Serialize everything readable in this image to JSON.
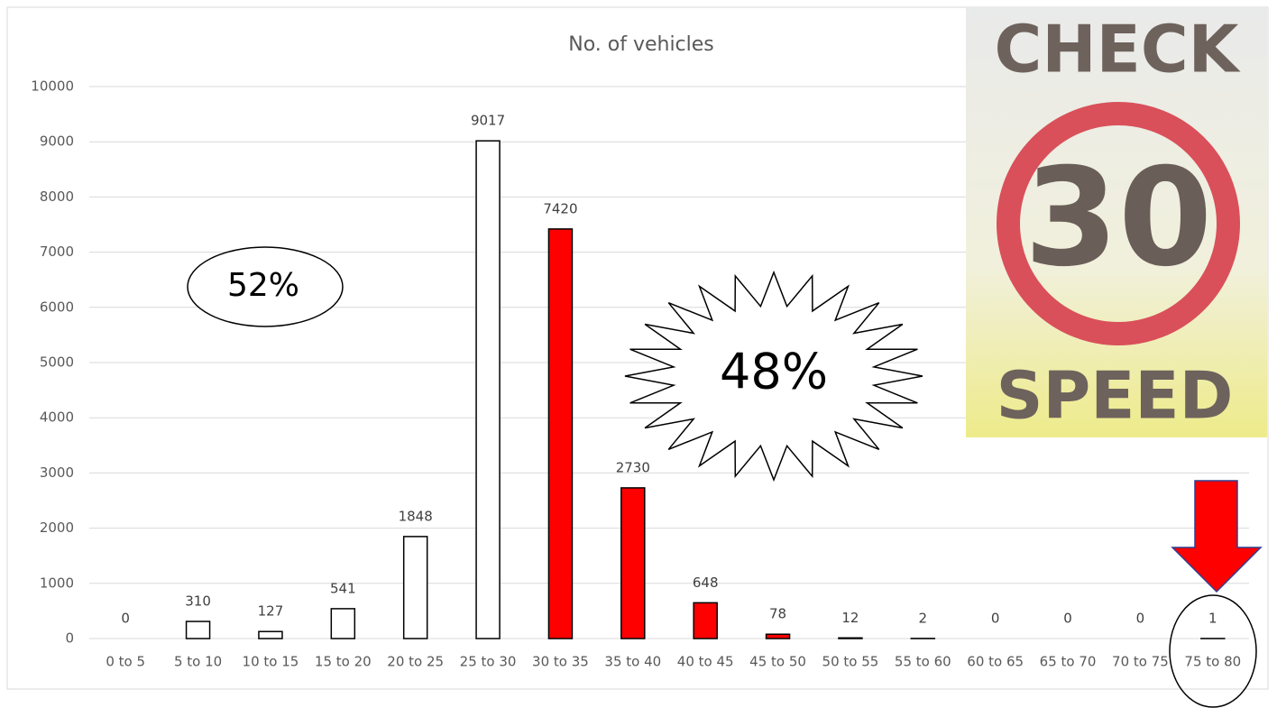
{
  "chart_data": {
    "type": "bar",
    "title": "No. of vehicles",
    "categories": [
      "0 to 5",
      "5 to 10",
      "10 to 15",
      "15 to 20",
      "20 to 25",
      "25 to 30",
      "30 to 35",
      "35 to 40",
      "40 to 45",
      "45 to 50",
      "50 to 55",
      "55 to 60",
      "60 to 65",
      "65 to 70",
      "70 to 75",
      "75 to 80"
    ],
    "values": [
      0,
      310,
      127,
      541,
      1848,
      9017,
      7420,
      2730,
      648,
      78,
      12,
      2,
      0,
      0,
      0,
      1
    ],
    "colors": [
      "#ffffff",
      "#ffffff",
      "#ffffff",
      "#ffffff",
      "#ffffff",
      "#ffffff",
      "#ff0000",
      "#ff0000",
      "#ff0000",
      "#ff0000",
      "#ffffff",
      "#ffffff",
      "#ffffff",
      "#ffffff",
      "#ffffff",
      "#ffffff"
    ],
    "ylim": [
      0,
      10000
    ],
    "yticks": [
      0,
      1000,
      2000,
      3000,
      4000,
      5000,
      6000,
      7000,
      8000,
      9000,
      10000
    ],
    "grid": true,
    "annotations": [
      "52%",
      "48%"
    ],
    "sign": [
      "CHECK",
      "30",
      "SPEED"
    ]
  }
}
